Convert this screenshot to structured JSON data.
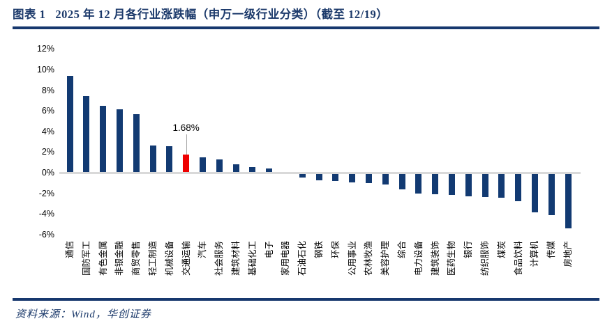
{
  "header": {
    "figure_label": "图表 1",
    "title": "2025 年 12 月各行业涨跌幅（申万一级行业分类）（截至 12/19）"
  },
  "footer": {
    "source": "资料来源：Wind，华创证券"
  },
  "colors": {
    "accent_navy": "#1c3a6b",
    "rule_navy": "#17386e",
    "bar_navy": "#123a72",
    "highlight_red": "#ee0000",
    "axis_gray": "#d9d9d9",
    "leader_gray": "#a6a6a6"
  },
  "chart_data": {
    "type": "bar",
    "title": "2025 年 12 月各行业涨跌幅（申万一级行业分类）（截至 12/19）",
    "xlabel": "",
    "ylabel": "",
    "grid": false,
    "legend": false,
    "ylim": [
      -6,
      12
    ],
    "yticks": [
      "12%",
      "10%",
      "8%",
      "6%",
      "4%",
      "2%",
      "0%",
      "-2%",
      "-4%",
      "-6%"
    ],
    "ytick_values": [
      12,
      10,
      8,
      6,
      4,
      2,
      0,
      -2,
      -4,
      -6
    ],
    "categories": [
      "通信",
      "国防军工",
      "有色金属",
      "非银金融",
      "商贸零售",
      "轻工制造",
      "机械设备",
      "交通运输",
      "汽车",
      "社会服务",
      "建筑材料",
      "基础化工",
      "电子",
      "家用电器",
      "石油石化",
      "钢铁",
      "环保",
      "公用事业",
      "农林牧渔",
      "美容护理",
      "综合",
      "电力设备",
      "建筑装饰",
      "医药生物",
      "银行",
      "纺织服饰",
      "煤炭",
      "食品饮料",
      "计算机",
      "传媒",
      "房地产"
    ],
    "values": [
      9.3,
      7.35,
      6.45,
      6.1,
      5.6,
      2.6,
      2.5,
      1.68,
      1.4,
      1.2,
      0.75,
      0.5,
      0.35,
      0,
      -0.35,
      -0.6,
      -0.7,
      -0.8,
      -0.9,
      -1.0,
      -1.5,
      -1.9,
      -1.95,
      -2.05,
      -2.15,
      -2.2,
      -2.3,
      -2.65,
      -3.7,
      -4.0,
      -5.3
    ],
    "highlight_index": 7,
    "highlight_label": "1.68%",
    "bar_color": "#123a72",
    "highlight_color": "#ee0000"
  }
}
